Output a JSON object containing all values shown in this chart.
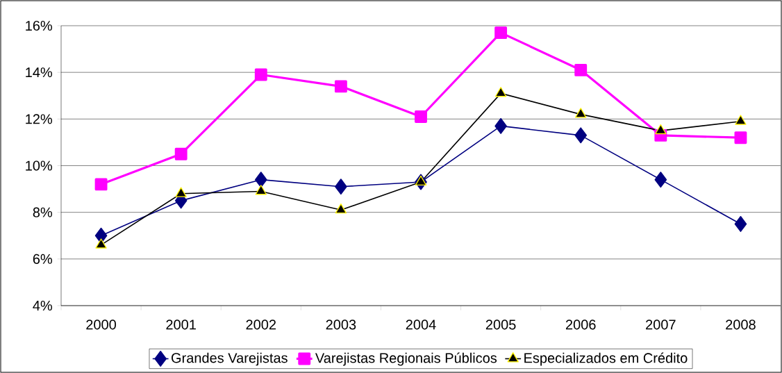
{
  "chart_data": {
    "type": "line",
    "categories": [
      "2000",
      "2001",
      "2002",
      "2003",
      "2004",
      "2005",
      "2006",
      "2007",
      "2008"
    ],
    "series": [
      {
        "name": "Grandes Varejistas",
        "color": "#000080",
        "marker": "diamond",
        "values": [
          7.0,
          8.5,
          9.4,
          9.1,
          9.3,
          11.7,
          11.3,
          9.4,
          7.5
        ]
      },
      {
        "name": "Varejistas Regionais Públicos",
        "color": "#ff00ff",
        "marker": "square",
        "values": [
          9.2,
          10.5,
          13.9,
          13.4,
          12.1,
          15.7,
          14.1,
          11.3,
          11.2
        ]
      },
      {
        "name": "Especializados em Crédito",
        "color": "#000000",
        "marker": "triangle",
        "values": [
          6.6,
          8.8,
          8.9,
          8.1,
          9.3,
          13.1,
          12.2,
          11.5,
          11.9
        ]
      }
    ],
    "ylim": [
      4,
      16
    ],
    "yticks": [
      {
        "value": 4,
        "label": "4%"
      },
      {
        "value": 6,
        "label": "6%"
      },
      {
        "value": 8,
        "label": "8%"
      },
      {
        "value": 10,
        "label": "10%"
      },
      {
        "value": 12,
        "label": "12%"
      },
      {
        "value": 14,
        "label": "14%"
      },
      {
        "value": 16,
        "label": "16%"
      }
    ],
    "grid": "y",
    "legend": "bottom"
  }
}
